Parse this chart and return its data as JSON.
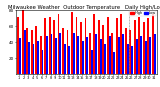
{
  "title": "Milwaukee Weather  Outdoor Temperature   Daily High/Low",
  "title_fontsize": 3.8,
  "days": [
    "1",
    "2",
    "3",
    "4",
    "5",
    "6",
    "7",
    "8",
    "9",
    "10",
    "11",
    "12",
    "13",
    "14",
    "15",
    "16",
    "17",
    "18",
    "19",
    "20",
    "21",
    "22",
    "23",
    "24",
    "25",
    "26",
    "27",
    "28",
    "29",
    "30",
    "31"
  ],
  "highs": [
    72,
    80,
    58,
    55,
    60,
    48,
    70,
    72,
    68,
    75,
    58,
    55,
    78,
    72,
    65,
    70,
    52,
    75,
    68,
    62,
    72,
    52,
    70,
    75,
    58,
    55,
    68,
    72,
    65,
    70,
    75
  ],
  "lows": [
    45,
    55,
    40,
    38,
    42,
    30,
    48,
    50,
    45,
    52,
    38,
    35,
    52,
    48,
    42,
    46,
    30,
    50,
    44,
    38,
    48,
    28,
    46,
    50,
    38,
    35,
    44,
    48,
    42,
    46,
    50
  ],
  "high_color": "#ff0000",
  "low_color": "#0000ff",
  "bg_color": "#ffffff",
  "ylim": [
    0,
    80
  ],
  "yticks": [
    20,
    40,
    60,
    80
  ],
  "ytick_labels": [
    "20",
    "40",
    "60",
    "80"
  ],
  "ylabel_fontsize": 3.0,
  "xlabel_fontsize": 2.5,
  "dashed_line_positions": [
    24.5
  ],
  "legend_high_label": "High",
  "legend_low_label": "Low",
  "bar_width": 0.42
}
